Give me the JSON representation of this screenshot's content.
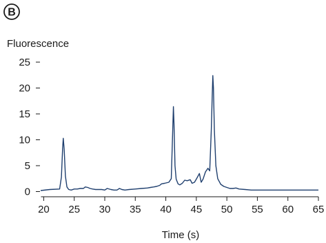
{
  "panel_label": "B",
  "chart_data": {
    "type": "line",
    "title": "",
    "ylabel": "Fluorescence",
    "xlabel": "Time (s)",
    "xlim": [
      19.5,
      65
    ],
    "ylim": [
      -1,
      25
    ],
    "xticks": [
      20,
      25,
      30,
      35,
      40,
      45,
      50,
      55,
      60,
      65
    ],
    "yticks": [
      0,
      5,
      10,
      15,
      20,
      25
    ],
    "grid": false,
    "legend": "none",
    "series": [
      {
        "color": "#1f3f6e",
        "x": [
          19.5,
          21,
          22.6,
          22.9,
          23.1,
          23.2,
          23.35,
          23.55,
          23.8,
          24.1,
          24.5,
          25,
          25.5,
          26,
          26.5,
          26.8,
          27.2,
          27.6,
          28,
          28.5,
          29,
          29.5,
          30,
          30.4,
          31,
          31.5,
          32,
          32.4,
          32.8,
          33.3,
          34,
          35,
          36,
          37,
          37.5,
          38,
          38.5,
          39,
          39.3,
          39.8,
          40.5,
          40.9,
          41.1,
          41.25,
          41.35,
          41.5,
          41.7,
          42,
          42.3,
          42.7,
          43.1,
          43.5,
          44,
          44.3,
          44.7,
          45.1,
          45.5,
          45.8,
          46.1,
          46.5,
          46.9,
          47.2,
          47.45,
          47.6,
          47.7,
          47.8,
          47.95,
          48.2,
          48.5,
          49,
          49.5,
          50,
          50.5,
          51,
          51.5,
          52,
          53,
          54,
          55,
          57,
          60,
          62,
          64,
          65
        ],
        "y": [
          0.2,
          0.4,
          0.5,
          2.8,
          8.5,
          10.3,
          8.2,
          3.0,
          0.9,
          0.4,
          0.3,
          0.5,
          0.5,
          0.6,
          0.6,
          0.9,
          0.8,
          0.6,
          0.5,
          0.4,
          0.4,
          0.4,
          0.3,
          0.6,
          0.4,
          0.3,
          0.3,
          0.6,
          0.4,
          0.3,
          0.4,
          0.5,
          0.6,
          0.7,
          0.8,
          0.9,
          1.0,
          1.2,
          1.5,
          1.6,
          1.8,
          2.5,
          10.5,
          16.4,
          13.0,
          5.0,
          2.4,
          1.5,
          1.3,
          1.6,
          2.2,
          2.1,
          2.3,
          1.6,
          1.8,
          2.6,
          3.5,
          1.8,
          2.4,
          3.8,
          4.5,
          4.0,
          12.0,
          18.5,
          22.4,
          20.0,
          12.0,
          5.0,
          2.5,
          1.4,
          1.0,
          0.8,
          0.6,
          0.6,
          0.7,
          0.5,
          0.4,
          0.3,
          0.3,
          0.3,
          0.3,
          0.3,
          0.3,
          0.3
        ]
      }
    ]
  }
}
